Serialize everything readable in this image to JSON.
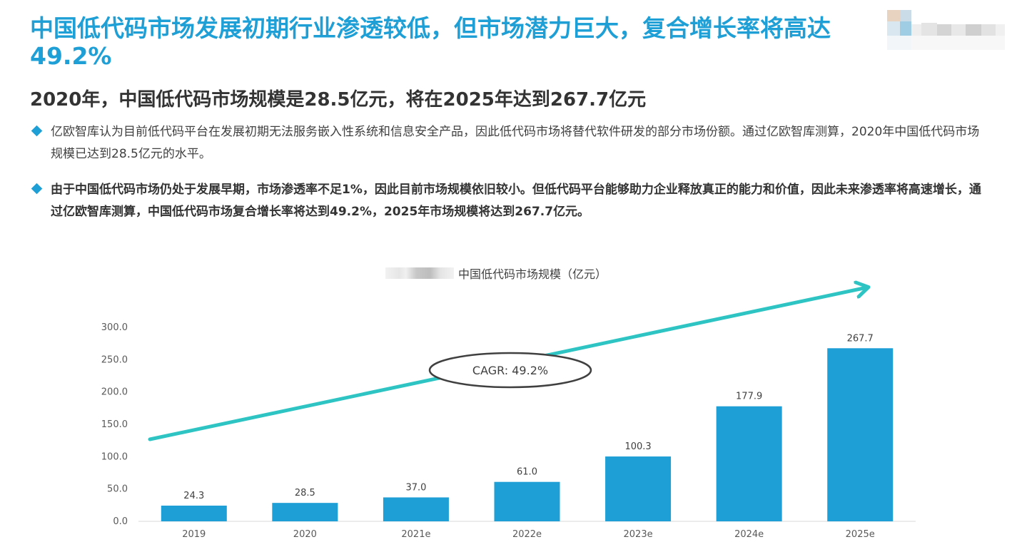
{
  "header": {
    "title": "中国低代码市场发展初期行业渗透较低，但市场潜力巨大，复合增长率将高达49.2%"
  },
  "subtitle": "2020年，中国低代码市场规模是28.5亿元，将在2025年达到267.7亿元",
  "bullets": [
    "亿欧智库认为目前低代码平台在发展初期无法服务嵌入性系统和信息安全产品，因此低代码市场将替代软件研发的部分市场份额。通过亿欧智库测算，2020年中国低代码市场规模已达到28.5亿元的水平。",
    "由于中国低代码市场仍处于发展早期，市场渗透率不足1%，因此目前市场规模依旧较小。但低代码平台能够助力企业释放真正的能力和价值，因此未来渗透率将高速增长，通过亿欧智库测算，中国低代码市场复合增长率将达到49.2%，2025年市场规模将达到267.7亿元。"
  ],
  "colors": {
    "title": "#1e9fd6",
    "bar": "#1e9fd6",
    "trend_arrow": "#2ec4c4",
    "bullet_diamond": "#1e9fd6"
  },
  "chart_data": {
    "type": "bar",
    "title": "中国低代码市场规模（亿元）",
    "legend_position": "top-center",
    "categories": [
      "2019",
      "2020",
      "2021e",
      "2022e",
      "2023e",
      "2024e",
      "2025e"
    ],
    "series": [
      {
        "name": "中国低代码市场规模（亿元）",
        "values": [
          24.3,
          28.5,
          37.0,
          61.0,
          100.3,
          177.9,
          267.7
        ],
        "labels": [
          "24.3",
          "28.5",
          "37.0",
          "61.0",
          "100.3",
          "177.9",
          "267.7"
        ]
      }
    ],
    "ylim": [
      0,
      300
    ],
    "yticks": [
      0,
      50,
      100,
      150,
      200,
      250,
      300
    ],
    "ytick_labels": [
      "0.0",
      "50.0",
      "100.0",
      "150.0",
      "200.0",
      "250.0",
      "300.0"
    ],
    "grid": false,
    "annotation": "CAGR: 49.2%",
    "trend_arrow": true
  }
}
